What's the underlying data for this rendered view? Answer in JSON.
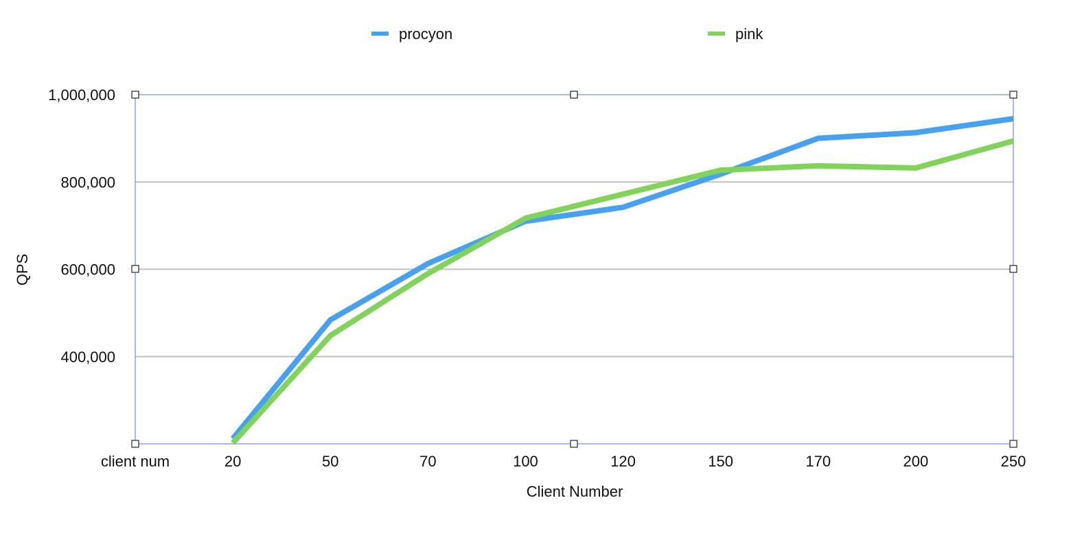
{
  "chart_data": {
    "type": "line",
    "categories": [
      "client num",
      "20",
      "50",
      "70",
      "100",
      "120",
      "150",
      "170",
      "200",
      "250"
    ],
    "series": [
      {
        "name": "procyon",
        "color": "#45a2f2",
        "values": [
          null,
          212000,
          484000,
          613000,
          710000,
          742000,
          818000,
          900000,
          913000,
          945000
        ]
      },
      {
        "name": "pink",
        "color": "#80d457",
        "values": [
          null,
          202000,
          448000,
          590000,
          717000,
          772000,
          827000,
          837000,
          832000,
          894000
        ]
      }
    ],
    "xlabel": "Client Number",
    "ylabel": "QPS",
    "ylim": [
      200000,
      1000000
    ],
    "yticks": [
      400000,
      600000,
      800000,
      1000000
    ],
    "ytick_labels": [
      "400,000",
      "600,000",
      "800,000",
      "1,000,000"
    ],
    "grid": true,
    "legend": "top",
    "grid_color": "#c0c0c0",
    "frame_color": "#8aa0f0"
  }
}
